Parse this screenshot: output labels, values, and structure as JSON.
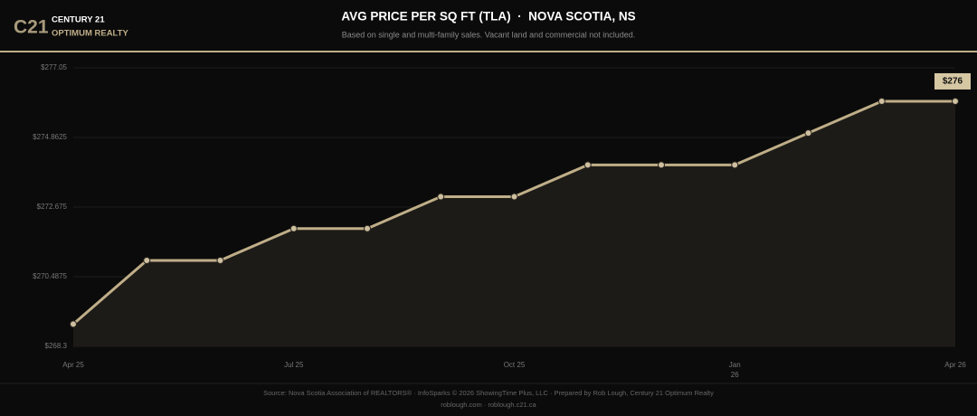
{
  "header": {
    "logo_mark": "C21",
    "brand": "CENTURY 21",
    "brand_sub": "OPTIMUM REALTY"
  },
  "chart_data": {
    "type": "line",
    "title": "AVG PRICE PER SQ FT (TLA)  ·  NOVA SCOTIA, NS",
    "subtitle": "Based on single and multi-family sales. Vacant land and commercial not included.",
    "categories": [
      "Apr 25",
      null,
      null,
      "Jul 25",
      null,
      null,
      "Oct 25",
      null,
      null,
      "Jan 26",
      null,
      null,
      "Apr 26"
    ],
    "series": [
      {
        "color": "#bfae88",
        "values": [
          269,
          271,
          271,
          272,
          272,
          273,
          273,
          274,
          274,
          274,
          275,
          276,
          276
        ],
        "value_labels": [
          null,
          null,
          null,
          null,
          null,
          null,
          null,
          null,
          null,
          null,
          null,
          null,
          "$276"
        ]
      }
    ],
    "ylim": [
      268.3,
      277.05
    ],
    "yticks": [
      {
        "value": 268.3,
        "label": "$268.3"
      },
      {
        "value": 270.4875,
        "label": "$270.4875"
      },
      {
        "value": 272.675,
        "label": "$272.675"
      },
      {
        "value": 274.8625,
        "label": "$274.8625"
      },
      {
        "value": 277.05,
        "label": "$277.05"
      }
    ],
    "grid": true,
    "area": true
  },
  "footer": {
    "source": "Source: Nova Scotia Association of REALTORS® · InfoSparks © 2026 ShowingTime Plus, LLC · Prepared by Rob Lough, Century 21 Optimum Realty",
    "links": "roblough.com · roblough.c21.ca"
  }
}
